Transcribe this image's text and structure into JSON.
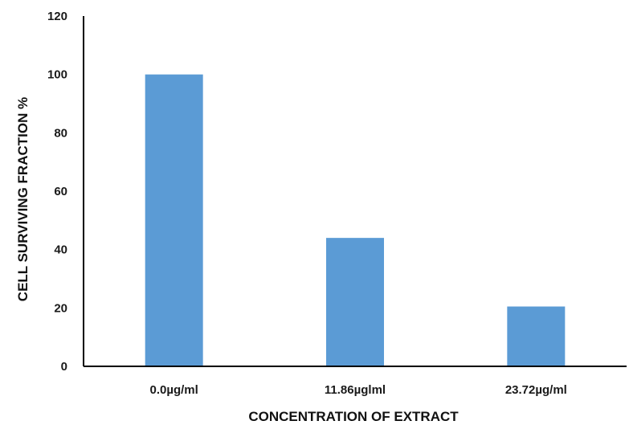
{
  "chart_data": {
    "type": "bar",
    "categories": [
      "0.0µg/ml",
      "11.86µglml",
      "23.72µg/ml"
    ],
    "values": [
      100,
      44,
      20.5
    ],
    "title": "",
    "xlabel": "CONCENTRATION OF EXTRACT",
    "ylabel": "CELL SURVIVING FRACTION %",
    "ylim": [
      0,
      120
    ],
    "yticks": [
      "0",
      "20",
      "40",
      "60",
      "80",
      "100",
      "120"
    ],
    "grid": false,
    "legend": "none",
    "bar_color": "#5b9bd5",
    "axis_color": "#000000"
  }
}
